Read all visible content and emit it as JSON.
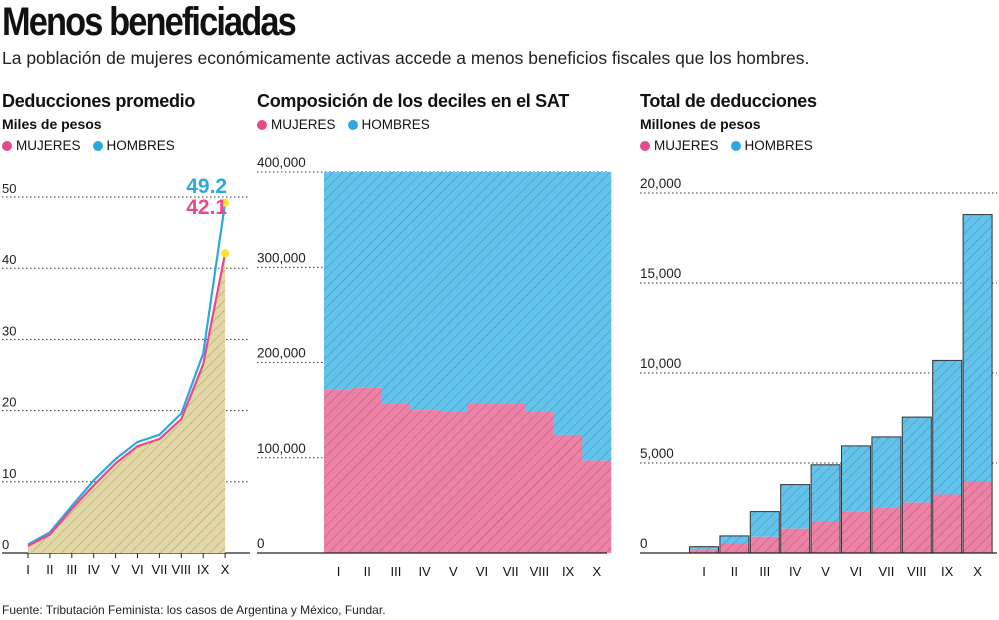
{
  "header": {
    "title": "Menos beneficiadas",
    "subtitle": "La población de mujeres económicamente activas accede a menos beneficios fiscales que los hombres."
  },
  "legend_labels": {
    "women": "MUJERES",
    "men": "HOMBRES"
  },
  "colors": {
    "women": "#e64a8c",
    "men": "#2ca8e0",
    "women_fill": "#ed82a6",
    "men_fill": "#62c3ec",
    "area_fill": "#e3d7a5",
    "highlight": "#f5e62a"
  },
  "footer": {
    "source": "Fuente: Tributación Feminista: los casos  de Argentina y México, Fundar."
  },
  "chart_data": [
    {
      "type": "line",
      "title": "Deducciones promedio",
      "units": "Miles de pesos",
      "categories": [
        "I",
        "II",
        "III",
        "IV",
        "V",
        "VI",
        "VII",
        "VIII",
        "IX",
        "X"
      ],
      "series": [
        {
          "name": "MUJERES",
          "values": [
            1.0,
            2.6,
            6.2,
            9.5,
            12.6,
            15.0,
            16.0,
            18.8,
            26.5,
            42.1
          ]
        },
        {
          "name": "HOMBRES",
          "values": [
            1.2,
            2.9,
            6.6,
            10.2,
            13.2,
            15.6,
            16.6,
            19.6,
            28.0,
            49.2
          ]
        }
      ],
      "ylim": [
        0,
        50
      ],
      "yticks": [
        0,
        10,
        20,
        30,
        40,
        50
      ],
      "annotations": {
        "men_last": "49.2",
        "women_last": "42.1"
      }
    },
    {
      "type": "bar",
      "stacked": true,
      "title": "Composición de los deciles en el SAT",
      "categories": [
        "I",
        "II",
        "III",
        "IV",
        "V",
        "VI",
        "VII",
        "VIII",
        "IX",
        "X"
      ],
      "series": [
        {
          "name": "MUJERES",
          "values": [
            172000,
            174000,
            157000,
            150000,
            149000,
            157000,
            157000,
            148000,
            124000,
            97000
          ]
        },
        {
          "name": "HOMBRES",
          "values": [
            228000,
            226000,
            243000,
            250000,
            251000,
            243000,
            243000,
            252000,
            276000,
            303000
          ]
        }
      ],
      "ylim": [
        0,
        400000
      ],
      "yticks": [
        0,
        100000,
        200000,
        300000,
        400000
      ],
      "ytick_labels": [
        "0",
        "100,000",
        "200,000",
        "300,000",
        "400,000"
      ]
    },
    {
      "type": "bar",
      "stacked": true,
      "title": "Total de deducciones",
      "units": "Millones de pesos",
      "categories": [
        "I",
        "II",
        "III",
        "IV",
        "V",
        "VI",
        "VII",
        "VIII",
        "IX",
        "X"
      ],
      "series": [
        {
          "name": "MUJERES",
          "values": [
            200,
            500,
            900,
            1350,
            1750,
            2300,
            2550,
            2800,
            3250,
            4000
          ]
        },
        {
          "name": "HOMBRES",
          "values": [
            150,
            450,
            1400,
            2450,
            3150,
            3650,
            3900,
            4750,
            7450,
            14800
          ]
        }
      ],
      "ylim": [
        0,
        20000
      ],
      "yticks": [
        0,
        5000,
        10000,
        15000,
        20000
      ],
      "ytick_labels": [
        "0",
        "5,000",
        "10,000",
        "15,000",
        "20,000"
      ]
    }
  ]
}
